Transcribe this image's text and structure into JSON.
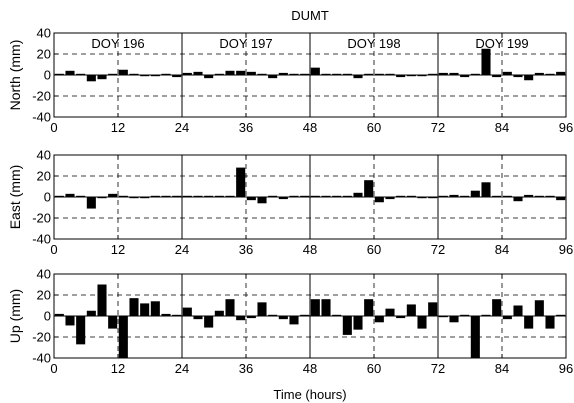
{
  "chart_data": {
    "title": "DUMT",
    "xlabel": "Time (hours)",
    "type": "bar",
    "x": [
      1,
      3,
      5,
      7,
      9,
      11,
      13,
      15,
      17,
      19,
      21,
      23,
      25,
      27,
      29,
      31,
      33,
      35,
      37,
      39,
      41,
      43,
      45,
      47,
      49,
      51,
      53,
      55,
      57,
      59,
      61,
      63,
      65,
      67,
      69,
      71,
      73,
      75,
      77,
      79,
      81,
      83,
      85,
      87,
      89,
      91,
      93,
      95
    ],
    "xlim": [
      0,
      96
    ],
    "xticks": [
      0,
      12,
      24,
      36,
      48,
      60,
      72,
      84,
      96
    ],
    "day_boundaries": [
      24,
      48,
      72
    ],
    "day_labels": [
      {
        "text": "DOY 196",
        "x": 12
      },
      {
        "text": "DOY 197",
        "x": 36
      },
      {
        "text": "DOY 198",
        "x": 60
      },
      {
        "text": "DOY 199",
        "x": 84
      }
    ],
    "panels": [
      {
        "ylabel": "North (mm)",
        "ylim": [
          -40,
          40
        ],
        "yticks": [
          40,
          20,
          0,
          -20,
          -40
        ],
        "values": [
          1,
          4,
          0,
          -6,
          -4,
          0,
          5,
          0,
          -1,
          -1,
          1,
          -2,
          2,
          3,
          -3,
          0,
          4,
          4,
          3,
          0,
          -3,
          2,
          0,
          0,
          7,
          1,
          0,
          0,
          -3,
          0,
          0,
          0,
          -2,
          -1,
          -1,
          0,
          2,
          2,
          -2,
          0,
          25,
          -2,
          3,
          -2,
          -5,
          2,
          0,
          3
        ]
      },
      {
        "ylabel": "East (mm)",
        "ylim": [
          -40,
          40
        ],
        "yticks": [
          40,
          20,
          0,
          -20,
          -40
        ],
        "values": [
          0,
          3,
          0,
          -11,
          -1,
          3,
          0,
          -1,
          -1,
          0,
          1,
          0,
          0,
          0,
          1,
          1,
          0,
          28,
          -3,
          -6,
          0,
          -2,
          0,
          0,
          1,
          0,
          0,
          0,
          4,
          16,
          -5,
          -2,
          0,
          0,
          -1,
          -1,
          0,
          2,
          0,
          6,
          14,
          0,
          0,
          -4,
          2,
          1,
          0,
          -3
        ]
      },
      {
        "ylabel": "Up (mm)",
        "ylim": [
          -40,
          40
        ],
        "yticks": [
          40,
          20,
          0,
          -20,
          -40
        ],
        "values": [
          2,
          -9,
          -27,
          5,
          30,
          -12,
          -40,
          17,
          12,
          14,
          2,
          0,
          8,
          -3,
          -11,
          5,
          16,
          -4,
          -2,
          13,
          0,
          -3,
          -8,
          0,
          16,
          16,
          0,
          -18,
          -13,
          16,
          -6,
          7,
          -2,
          11,
          -12,
          13,
          -1,
          -6,
          0,
          -40,
          0,
          16,
          -3,
          10,
          -12,
          15,
          -12,
          0
        ]
      }
    ]
  }
}
